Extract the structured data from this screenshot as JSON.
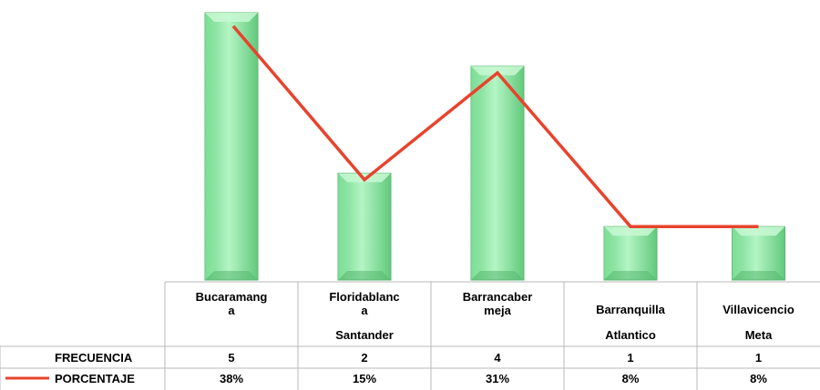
{
  "chart_data": {
    "type": "bar",
    "categories": [
      [
        "Bucaramang",
        "a"
      ],
      [
        "Floridablanc",
        "a"
      ],
      [
        "Barrancaber",
        "meja"
      ],
      [
        "Barranquilla"
      ],
      [
        "Villavicencio"
      ]
    ],
    "groups": [
      "Santander",
      "Atlantico",
      "Meta"
    ],
    "series": [
      {
        "name": "FRECUENCIA",
        "kind": "bar",
        "values": [
          5,
          2,
          4,
          1,
          1
        ],
        "display": [
          "5",
          "2",
          "4",
          "1",
          "1"
        ]
      },
      {
        "name": "PORCENTAJE",
        "kind": "line",
        "values": [
          38,
          15,
          31,
          8,
          8
        ],
        "display": [
          "38%",
          "15%",
          "31%",
          "8%",
          "8%"
        ],
        "color": "#e8432d"
      }
    ],
    "ylim": [
      0,
      5
    ],
    "grid": false,
    "legend": "data-table"
  },
  "colors": {
    "bar_light": "#a8f0b8",
    "bar_mid": "#7fdc97",
    "bar_dark": "#5cc277",
    "line": "#e8432d"
  }
}
